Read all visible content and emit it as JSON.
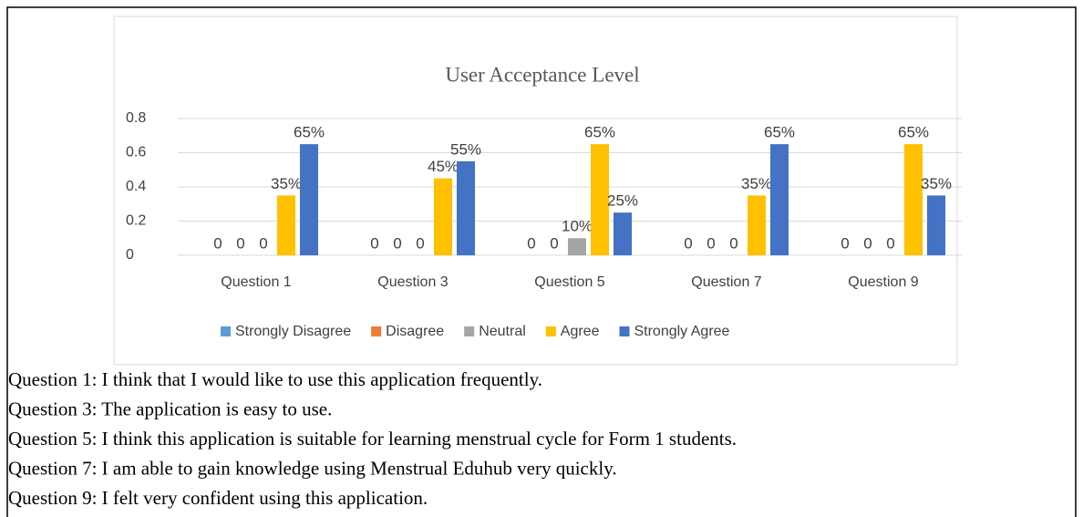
{
  "chart_data": {
    "type": "bar",
    "title": "User Acceptance Level",
    "categories": [
      "Question 1",
      "Question 3",
      "Question 5",
      "Question 7",
      "Question 9"
    ],
    "series": [
      {
        "name": "Strongly Disagree",
        "color": "#5b9bd5",
        "values": [
          0,
          0,
          0,
          0,
          0
        ],
        "value_labels": [
          "0",
          "0",
          "0",
          "0",
          "0"
        ]
      },
      {
        "name": "Disagree",
        "color": "#ed7d31",
        "values": [
          0,
          0,
          0,
          0,
          0
        ],
        "value_labels": [
          "0",
          "0",
          "0",
          "0",
          "0"
        ]
      },
      {
        "name": "Neutral",
        "color": "#a5a5a5",
        "values": [
          0,
          0,
          0.1,
          0,
          0
        ],
        "value_labels": [
          "0",
          "0",
          "10%",
          "0",
          "0"
        ]
      },
      {
        "name": "Agree",
        "color": "#ffc000",
        "values": [
          0.35,
          0.45,
          0.65,
          0.35,
          0.65
        ],
        "value_labels": [
          "35%",
          "45%",
          "65%",
          "35%",
          "65%"
        ]
      },
      {
        "name": "Strongly Agree",
        "color": "#4472c4",
        "values": [
          0.65,
          0.55,
          0.25,
          0.65,
          0.35
        ],
        "value_labels": [
          "65%",
          "55%",
          "25%",
          "65%",
          "35%"
        ]
      }
    ],
    "ylim": [
      0,
      0.8
    ],
    "yticks": [
      0,
      0.2,
      0.4,
      0.6,
      0.8
    ],
    "grid": true,
    "legend": "bottom"
  },
  "notes": [
    "Question 1: I think that I would like to use this application frequently.",
    "Question 3: The application is easy to use.",
    "Question 5: I think this application is suitable for learning menstrual cycle for Form 1 students.",
    "Question 7: I am able to gain knowledge using Menstrual Eduhub very quickly.",
    "Question 9: I felt very confident using this application."
  ]
}
